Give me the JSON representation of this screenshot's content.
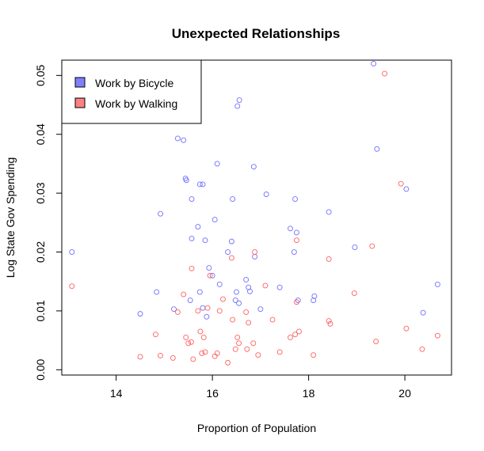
{
  "chart_data": {
    "type": "scatter",
    "title": "Unexpected Relationships",
    "xlabel": "Proportion of Population",
    "ylabel": "Log State Gov Spending",
    "xlim": [
      12.87,
      20.97
    ],
    "ylim": [
      -0.0009,
      0.0526
    ],
    "xticks": [
      14,
      16,
      18,
      20
    ],
    "yticks": [
      0.0,
      0.01,
      0.02,
      0.03,
      0.04,
      0.05
    ],
    "ytick_labels": [
      "0.00",
      "0.01",
      "0.02",
      "0.03",
      "0.04",
      "0.05"
    ],
    "grid": false,
    "legend_position": "top-left",
    "series": [
      {
        "name": "Work by Bicycle",
        "color": "#7070ff",
        "swatch": "#8080ff",
        "points": [
          [
            13.08,
            0.02
          ],
          [
            14.5,
            0.0095
          ],
          [
            14.84,
            0.0132
          ],
          [
            14.92,
            0.0265
          ],
          [
            15.2,
            0.0103
          ],
          [
            15.28,
            0.0393
          ],
          [
            15.4,
            0.039
          ],
          [
            15.44,
            0.0325
          ],
          [
            15.46,
            0.0322
          ],
          [
            15.54,
            0.0118
          ],
          [
            15.57,
            0.029
          ],
          [
            15.57,
            0.0223
          ],
          [
            15.7,
            0.0243
          ],
          [
            15.74,
            0.0132
          ],
          [
            15.74,
            0.0315
          ],
          [
            15.8,
            0.0315
          ],
          [
            15.8,
            0.0105
          ],
          [
            15.85,
            0.022
          ],
          [
            15.88,
            0.009
          ],
          [
            15.93,
            0.0173
          ],
          [
            16.0,
            0.016
          ],
          [
            16.05,
            0.0255
          ],
          [
            16.1,
            0.035
          ],
          [
            16.15,
            0.0145
          ],
          [
            16.32,
            0.02
          ],
          [
            16.4,
            0.0218
          ],
          [
            16.42,
            0.029
          ],
          [
            16.48,
            0.0118
          ],
          [
            16.5,
            0.0132
          ],
          [
            16.52,
            0.0448
          ],
          [
            16.56,
            0.0458
          ],
          [
            16.7,
            0.0153
          ],
          [
            16.75,
            0.014
          ],
          [
            16.78,
            0.0133
          ],
          [
            16.86,
            0.0345
          ],
          [
            16.88,
            0.0192
          ],
          [
            17.0,
            0.0103
          ],
          [
            17.12,
            0.0298
          ],
          [
            17.4,
            0.014
          ],
          [
            17.62,
            0.024
          ],
          [
            17.7,
            0.02
          ],
          [
            17.72,
            0.029
          ],
          [
            17.75,
            0.0233
          ],
          [
            18.1,
            0.0118
          ],
          [
            18.42,
            0.0268
          ],
          [
            18.96,
            0.0208
          ],
          [
            19.35,
            0.052
          ],
          [
            19.42,
            0.0375
          ],
          [
            20.03,
            0.0307
          ],
          [
            20.38,
            0.0097
          ],
          [
            20.68,
            0.0145
          ],
          [
            16.55,
            0.0113
          ],
          [
            18.12,
            0.0125
          ],
          [
            17.78,
            0.0118
          ]
        ]
      },
      {
        "name": "Work by Walking",
        "color": "#ff6060",
        "swatch": "#ff8080",
        "points": [
          [
            13.08,
            0.0142
          ],
          [
            14.5,
            0.0022
          ],
          [
            14.82,
            0.006
          ],
          [
            14.92,
            0.0024
          ],
          [
            15.18,
            0.002
          ],
          [
            15.28,
            0.0098
          ],
          [
            15.4,
            0.0128
          ],
          [
            15.45,
            0.0055
          ],
          [
            15.5,
            0.0045
          ],
          [
            15.56,
            0.0047
          ],
          [
            15.57,
            0.0172
          ],
          [
            15.7,
            0.01
          ],
          [
            15.75,
            0.0065
          ],
          [
            15.78,
            0.0028
          ],
          [
            15.82,
            0.0055
          ],
          [
            15.85,
            0.003
          ],
          [
            15.9,
            0.0105
          ],
          [
            15.95,
            0.016
          ],
          [
            16.05,
            0.0023
          ],
          [
            16.1,
            0.0028
          ],
          [
            16.15,
            0.01
          ],
          [
            16.22,
            0.012
          ],
          [
            16.32,
            0.0012
          ],
          [
            16.4,
            0.019
          ],
          [
            16.42,
            0.0085
          ],
          [
            16.48,
            0.0035
          ],
          [
            16.52,
            0.0055
          ],
          [
            16.55,
            0.0045
          ],
          [
            16.7,
            0.0098
          ],
          [
            16.72,
            0.0035
          ],
          [
            16.75,
            0.008
          ],
          [
            16.85,
            0.0045
          ],
          [
            16.88,
            0.02
          ],
          [
            16.95,
            0.0025
          ],
          [
            17.1,
            0.0143
          ],
          [
            17.25,
            0.0085
          ],
          [
            17.4,
            0.003
          ],
          [
            17.62,
            0.0055
          ],
          [
            17.72,
            0.006
          ],
          [
            17.75,
            0.022
          ],
          [
            17.8,
            0.0065
          ],
          [
            17.75,
            0.0115
          ],
          [
            18.1,
            0.0025
          ],
          [
            18.42,
            0.0188
          ],
          [
            18.42,
            0.0083
          ],
          [
            18.45,
            0.0078
          ],
          [
            18.95,
            0.013
          ],
          [
            19.32,
            0.021
          ],
          [
            19.4,
            0.0048
          ],
          [
            19.58,
            0.0503
          ],
          [
            19.92,
            0.0316
          ],
          [
            20.03,
            0.007
          ],
          [
            20.36,
            0.0035
          ],
          [
            20.68,
            0.0058
          ],
          [
            15.6,
            0.0018
          ]
        ]
      }
    ]
  }
}
